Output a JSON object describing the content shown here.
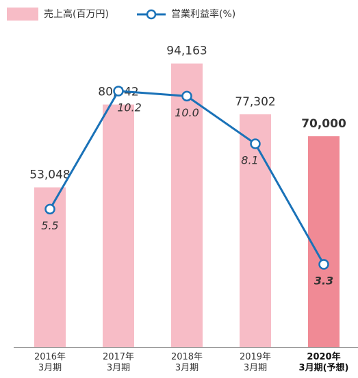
{
  "chart_data": {
    "type": "bar",
    "categories": [
      "2016年\n3月期",
      "2017年\n3月期",
      "2018年\n3月期",
      "2019年\n3月期",
      "2020年\n3月期(予想)"
    ],
    "highlight": 4,
    "series": [
      {
        "name": "売上高(百万円)",
        "type": "bar",
        "color": "#f7bcc6",
        "highlight_color": "#f08a95",
        "values": [
          53048,
          80542,
          94163,
          77302,
          70000
        ],
        "value_labels": [
          "53,048",
          "80,542",
          "94,163",
          "77,302",
          "70,000"
        ]
      },
      {
        "name": "営業利益率(%)",
        "type": "line",
        "axis": "y2",
        "color": "#1a72b8",
        "values": [
          5.5,
          10.2,
          10.0,
          8.1,
          3.3
        ],
        "value_labels": [
          "5.5",
          "10.2",
          "10.0",
          "8.1",
          "3.3"
        ]
      }
    ],
    "ylim": [
      0,
      100000
    ],
    "y2lim": [
      0,
      12
    ]
  }
}
